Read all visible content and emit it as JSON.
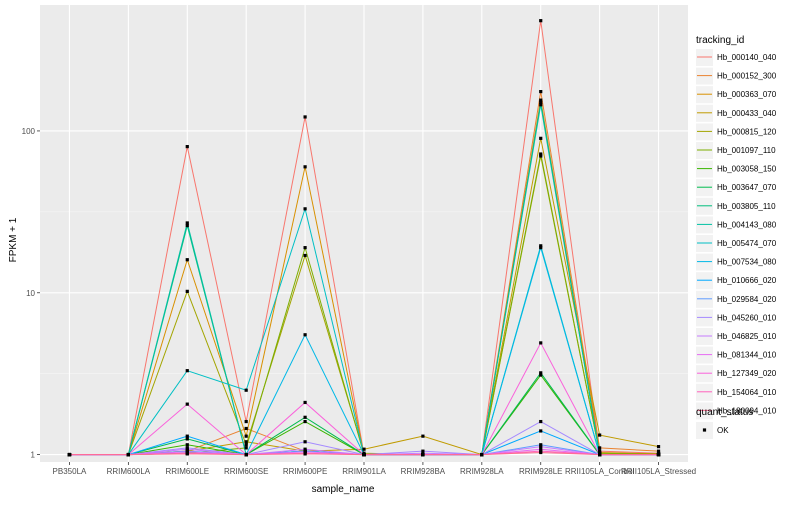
{
  "chart_data": {
    "type": "line",
    "xlabel": "sample_name",
    "ylabel": "FPKM + 1",
    "y_scale": "log10",
    "ylim": [
      0.9,
      600
    ],
    "y_ticks": [
      {
        "value": 1,
        "label": "1"
      },
      {
        "value": 10,
        "label": "10"
      },
      {
        "value": 100,
        "label": "100"
      }
    ],
    "grid": true,
    "legend_position": "right",
    "categories": [
      "PB350LA",
      "RRIM600LA",
      "RRIM600LE",
      "RRIM600SE",
      "RRIM600PE",
      "RRIM901LA",
      "RRIM928BA",
      "RRIM928LA",
      "RRIM928LE",
      "RRII105LA_Control",
      "RRII105LA_Stressed"
    ],
    "legend": {
      "title": "tracking_id"
    },
    "shape_legend": {
      "title": "quant_status",
      "items": [
        "OK"
      ]
    },
    "series": [
      {
        "name": "Hb_000140_040",
        "color": "#F8766D",
        "values": [
          1,
          1,
          80,
          1.6,
          122,
          1.0,
          1.0,
          1.0,
          480,
          1.05,
          1.02
        ]
      },
      {
        "name": "Hb_000152_300",
        "color": "#EA8331",
        "values": [
          1,
          1,
          1.05,
          1.45,
          1.05,
          1.0,
          1.0,
          1.0,
          175,
          1.1,
          1.05
        ]
      },
      {
        "name": "Hb_000363_070",
        "color": "#D89000",
        "values": [
          1,
          1,
          16,
          1.3,
          60,
          1.0,
          1.0,
          1.0,
          155,
          1.03,
          1.01
        ]
      },
      {
        "name": "Hb_000433_040",
        "color": "#C09B00",
        "values": [
          1,
          1,
          1.05,
          1.2,
          1.05,
          1.08,
          1.3,
          1.0,
          90,
          1.32,
          1.12
        ]
      },
      {
        "name": "Hb_000815_120",
        "color": "#A3A500",
        "values": [
          1,
          1,
          10.2,
          1.15,
          17,
          1.02,
          1.0,
          1.0,
          70,
          1.02,
          1.01
        ]
      },
      {
        "name": "Hb_001097_110",
        "color": "#7CAE00",
        "values": [
          1,
          1,
          1.02,
          1.1,
          19,
          1.0,
          1.0,
          1.0,
          72,
          1.02,
          1.0
        ]
      },
      {
        "name": "Hb_003058_150",
        "color": "#39B600",
        "values": [
          1,
          1,
          1.15,
          1.0,
          1.6,
          1.0,
          1.0,
          1.0,
          3.1,
          1.0,
          1.0
        ]
      },
      {
        "name": "Hb_003647_070",
        "color": "#00BB4E",
        "values": [
          1,
          1,
          1.25,
          1.0,
          1.7,
          1.0,
          1.0,
          1.0,
          3.2,
          1.0,
          1.0
        ]
      },
      {
        "name": "Hb_003805_110",
        "color": "#00BF7D",
        "values": [
          1,
          1,
          26,
          1.0,
          1.05,
          1.0,
          1.0,
          1.0,
          150,
          1.0,
          1.0
        ]
      },
      {
        "name": "Hb_004143_080",
        "color": "#00C1A3",
        "values": [
          1,
          1,
          27,
          1.0,
          1.05,
          1.0,
          1.0,
          1.0,
          145,
          1.0,
          1.0
        ]
      },
      {
        "name": "Hb_005474_070",
        "color": "#00BFC4",
        "values": [
          1,
          1,
          3.3,
          2.5,
          33,
          1.0,
          1.0,
          1.0,
          19.5,
          1.0,
          1.0
        ]
      },
      {
        "name": "Hb_007534_080",
        "color": "#00B8E7",
        "values": [
          1,
          1,
          1.02,
          1.0,
          5.5,
          1.0,
          1.0,
          1.0,
          19,
          1.0,
          1.0
        ]
      },
      {
        "name": "Hb_010666_020",
        "color": "#00A9FF",
        "values": [
          1,
          1,
          1.3,
          1.0,
          1.05,
          1.0,
          1.0,
          1.0,
          1.4,
          1.0,
          1.0
        ]
      },
      {
        "name": "Hb_029584_020",
        "color": "#619CFF",
        "values": [
          1,
          1,
          1.05,
          1.0,
          1.05,
          1.0,
          1.0,
          1.0,
          1.15,
          1.0,
          1.0
        ]
      },
      {
        "name": "Hb_045260_010",
        "color": "#A58AFF",
        "values": [
          1,
          1,
          1.1,
          1.0,
          1.2,
          1.0,
          1.05,
          1.0,
          1.6,
          1.0,
          1.0
        ]
      },
      {
        "name": "Hb_046825_010",
        "color": "#C77CFF",
        "values": [
          1,
          1,
          1.08,
          1.0,
          1.08,
          1.0,
          1.02,
          1.0,
          1.12,
          1.0,
          1.0
        ]
      },
      {
        "name": "Hb_081344_010",
        "color": "#E76BF3",
        "values": [
          1,
          1,
          1.04,
          1.0,
          1.04,
          1.0,
          1.0,
          1.0,
          1.08,
          1.0,
          1.0
        ]
      },
      {
        "name": "Hb_127349_020",
        "color": "#FA62DB",
        "values": [
          1,
          1,
          2.05,
          1.0,
          2.1,
          1.0,
          1.0,
          1.0,
          4.9,
          1.0,
          1.0
        ]
      },
      {
        "name": "Hb_154064_010",
        "color": "#FF62BC",
        "values": [
          1,
          1,
          1.02,
          1.0,
          1.02,
          1.0,
          1.0,
          1.0,
          1.05,
          1.0,
          1.0
        ]
      },
      {
        "name": "Hb_180094_010",
        "color": "#FF6C91",
        "values": [
          1,
          1,
          1.01,
          1.0,
          1.01,
          1.0,
          1.0,
          1.0,
          1.03,
          1.0,
          1.0
        ]
      }
    ]
  }
}
